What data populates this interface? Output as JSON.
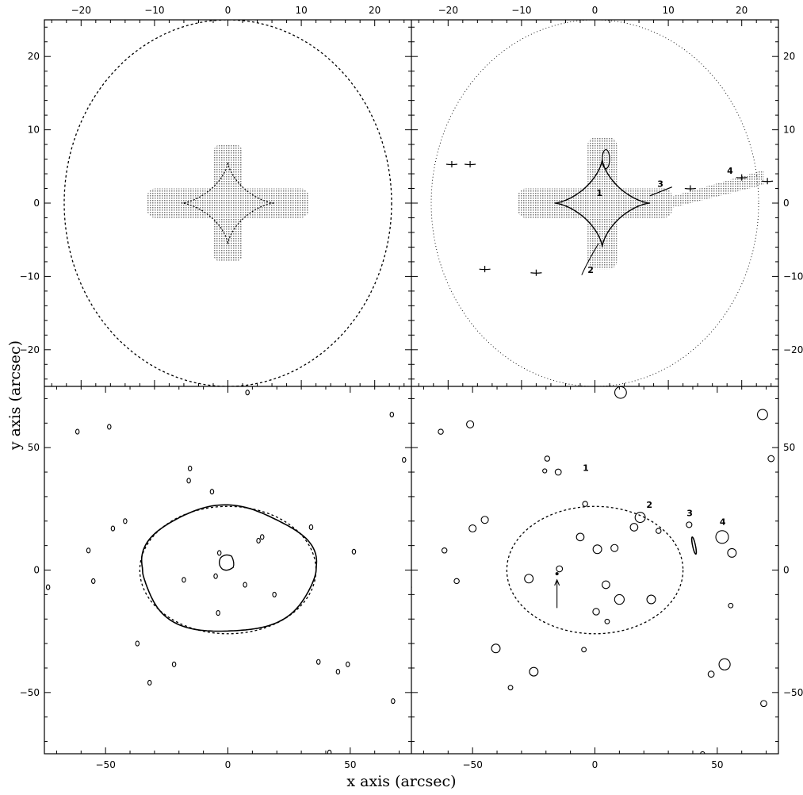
{
  "figure": {
    "x_axis_label": "x axis (arcsec)",
    "y_axis_label": "y axis (arcsec)"
  },
  "chart_data": [
    {
      "type": "scatter",
      "panel": "top-left",
      "xlim": [
        -25,
        25
      ],
      "ylim": [
        -25,
        25
      ],
      "xticks": [
        -20,
        -10,
        0,
        10,
        20
      ],
      "yticks": [
        -20,
        -10,
        0,
        10,
        20
      ],
      "tick_labels_top": [
        "−20",
        "−10",
        "0",
        "10",
        "20"
      ],
      "tick_labels_left": [
        "−20",
        "−10",
        "0",
        "10",
        "20"
      ],
      "critical_ellipse": {
        "cx": 0,
        "cy": 0,
        "rx": 22.3,
        "ry": 25
      },
      "caustic_astroid": {
        "cx": 0,
        "cy": 0,
        "rx": 6.3,
        "ry": 5.6
      },
      "shaded_region": [
        {
          "x": -11,
          "y": -2,
          "w": 22,
          "h": 4
        },
        {
          "x": -2,
          "y": -8,
          "w": 4,
          "h": 16
        }
      ]
    },
    {
      "type": "scatter",
      "panel": "top-right",
      "xlim": [
        -25,
        25
      ],
      "ylim": [
        -25,
        25
      ],
      "xticks": [
        -20,
        -10,
        0,
        10,
        20
      ],
      "yticks": [
        -20,
        -10,
        0,
        10,
        20
      ],
      "tick_labels_top": [
        "−20",
        "−10",
        "0",
        "10",
        "20"
      ],
      "tick_labels_right": [
        "−20",
        "−10",
        "0",
        "10",
        "20"
      ],
      "critical_ellipse": {
        "cx": 0,
        "cy": 0,
        "rx": 22.3,
        "ry": 25
      },
      "caustic_astroid": {
        "cx": 1,
        "cy": 0,
        "rx": 6.5,
        "ry": 6
      },
      "satellite_caustics": [
        {
          "x": 13,
          "y": 2
        },
        {
          "x": 20,
          "y": 3.5
        },
        {
          "x": 23.5,
          "y": 3
        },
        {
          "x": -19.5,
          "y": 5.3
        },
        {
          "x": -17,
          "y": 5.3
        },
        {
          "x": -15,
          "y": -9
        },
        {
          "x": -8,
          "y": -9.5
        }
      ],
      "labels": [
        {
          "text": "1",
          "x": 0.2,
          "y": 1
        },
        {
          "text": "2",
          "x": -1,
          "y": -9.5
        },
        {
          "text": "3",
          "x": 8.5,
          "y": 2.2
        },
        {
          "text": "4",
          "x": 18,
          "y": 4
        }
      ]
    },
    {
      "type": "scatter",
      "panel": "bottom-left",
      "xlim": [
        -75,
        75
      ],
      "ylim": [
        -75,
        75
      ],
      "xticks": [
        -50,
        0,
        50
      ],
      "yticks": [
        -50,
        0,
        50
      ],
      "tick_labels_bottom": [
        "−50",
        "0",
        "50"
      ],
      "tick_labels_left": [
        "−50",
        "0",
        "50"
      ],
      "critical_ellipse": {
        "cx": 0,
        "cy": 0,
        "rx": 36,
        "ry": 26
      },
      "images": [
        [
          -61.5,
          56.5
        ],
        [
          -48.5,
          58.5
        ],
        [
          -15.5,
          41.5
        ],
        [
          -16,
          36.5
        ],
        [
          -6.5,
          32
        ],
        [
          8,
          72.5
        ],
        [
          67,
          63.5
        ],
        [
          72,
          45
        ],
        [
          -47,
          17
        ],
        [
          -42,
          20
        ],
        [
          -57,
          8
        ],
        [
          -55,
          -4.5
        ],
        [
          -37,
          -30
        ],
        [
          -22,
          -38.5
        ],
        [
          -32,
          -46
        ],
        [
          34,
          17.5
        ],
        [
          51.5,
          7.5
        ],
        [
          37,
          -37.5
        ],
        [
          49,
          -38.5
        ],
        [
          45,
          -41.5
        ],
        [
          67.5,
          -53.5
        ],
        [
          41.5,
          -74.5
        ],
        [
          -73.5,
          -7
        ],
        [
          12.5,
          12
        ],
        [
          14,
          13.5
        ],
        [
          -18,
          -4
        ],
        [
          -5,
          -2.5
        ],
        [
          -3.5,
          7
        ],
        [
          7,
          -6
        ],
        [
          19,
          -10
        ],
        [
          -4,
          -17.5
        ]
      ]
    },
    {
      "type": "scatter",
      "panel": "bottom-right",
      "xlim": [
        -75,
        75
      ],
      "ylim": [
        -75,
        75
      ],
      "xticks": [
        -50,
        0,
        50
      ],
      "yticks": [
        -50,
        0,
        50
      ],
      "tick_labels_bottom": [
        "−50",
        "0",
        "50"
      ],
      "tick_labels_right": [
        "−50",
        "0",
        "50"
      ],
      "critical_ellipse": {
        "cx": 0,
        "cy": 0,
        "rx": 36,
        "ry": 26
      },
      "sources": [
        [
          10.5,
          72.5,
          2.3
        ],
        [
          68.5,
          63.5,
          2
        ],
        [
          -63,
          56.5,
          1
        ],
        [
          -51,
          59.5,
          1.4
        ],
        [
          72,
          45.5,
          1.2
        ],
        [
          -15,
          40,
          1.2
        ],
        [
          -19.5,
          45.5,
          1
        ],
        [
          -20.5,
          40.5,
          0.8
        ],
        [
          -4,
          27,
          1
        ],
        [
          18.5,
          21.5,
          2
        ],
        [
          -45,
          20.5,
          1.4
        ],
        [
          -50,
          17,
          1.4
        ],
        [
          16,
          17.5,
          1.5
        ],
        [
          26,
          16,
          1
        ],
        [
          38.5,
          18.5,
          1.1
        ],
        [
          52,
          13.5,
          2.5
        ],
        [
          -6,
          13.5,
          1.5
        ],
        [
          -61.5,
          8,
          1
        ],
        [
          1,
          8.5,
          1.7
        ],
        [
          -14.5,
          0.5,
          1.2
        ],
        [
          8,
          9,
          1.4
        ],
        [
          -27,
          -3.5,
          1.7
        ],
        [
          -56.5,
          -4.5,
          1
        ],
        [
          4.5,
          -6,
          1.5
        ],
        [
          -76,
          -7,
          1
        ],
        [
          10,
          -12,
          1.9
        ],
        [
          23,
          -12,
          1.7
        ],
        [
          55.5,
          -14.5,
          0.9
        ],
        [
          0.5,
          -17,
          1.3
        ],
        [
          5,
          -21,
          0.9
        ],
        [
          -40.5,
          -32,
          1.7
        ],
        [
          -4.5,
          -32.5,
          0.9
        ],
        [
          53,
          -38.5,
          2.2
        ],
        [
          -25,
          -41.5,
          1.7
        ],
        [
          47.5,
          -42.5,
          1.2
        ],
        [
          -34.5,
          -48,
          0.9
        ],
        [
          69,
          -54.5,
          1.2
        ],
        [
          44,
          -75,
          0.8
        ],
        [
          56,
          7,
          1.7
        ]
      ],
      "labels": [
        {
          "text": "1",
          "x": -5,
          "y": 40.5
        },
        {
          "text": "2",
          "x": 21,
          "y": 25.5
        },
        {
          "text": "3",
          "x": 37.5,
          "y": 22
        },
        {
          "text": "4",
          "x": 51,
          "y": 18.5
        }
      ],
      "arrow": {
        "x1": -15.5,
        "y1": -15.5,
        "x2": -15.5,
        "y2": -4
      }
    }
  ]
}
